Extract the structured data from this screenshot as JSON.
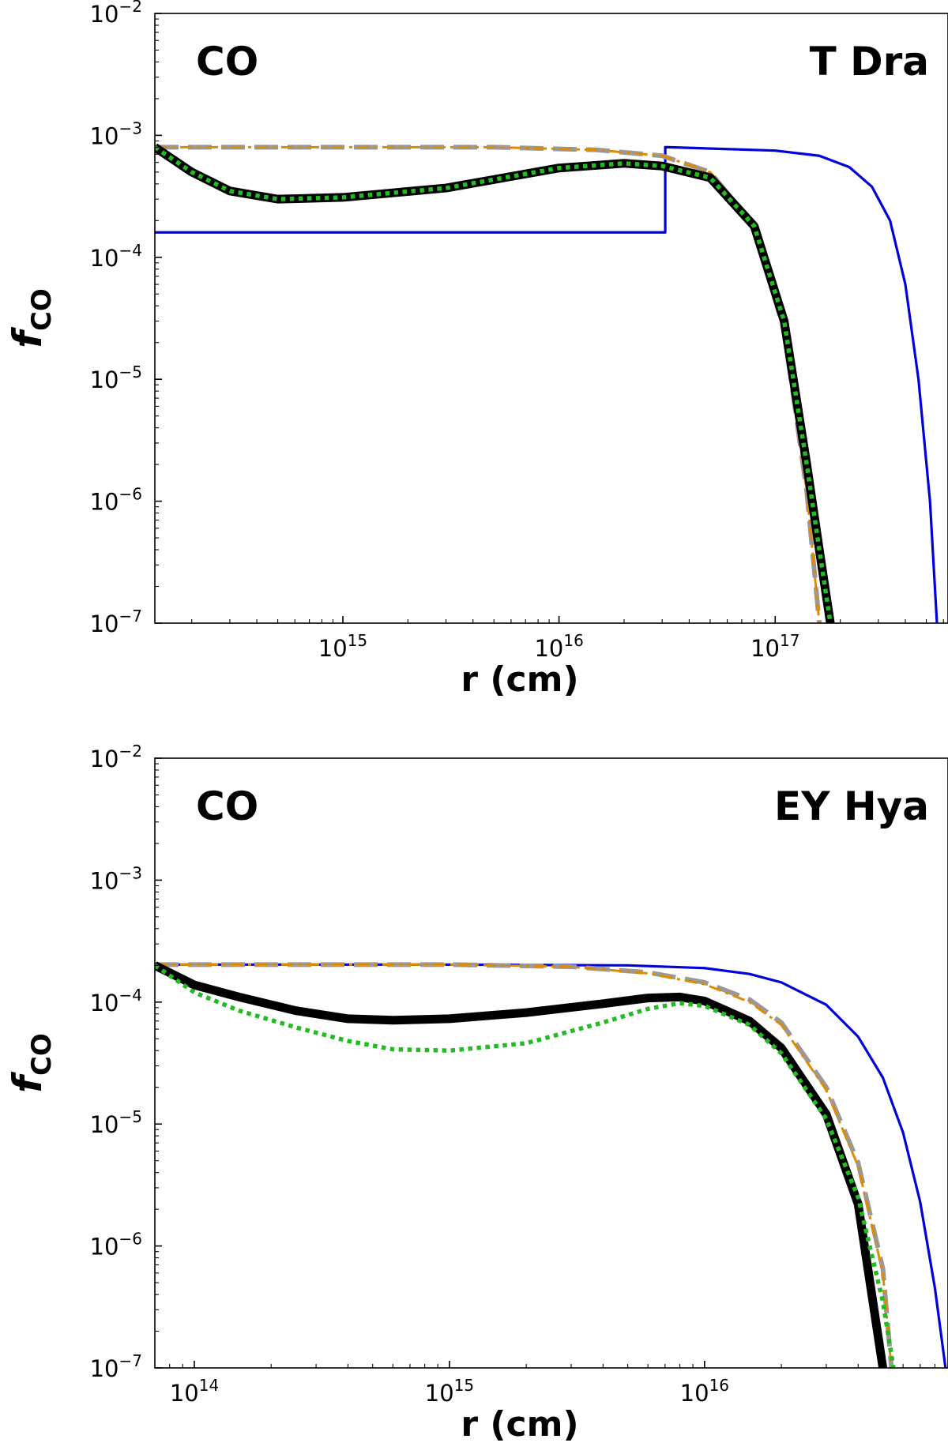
{
  "chart_data": [
    {
      "type": "line",
      "panel": "top",
      "xlabel": "r (cm)",
      "ylabel": "f",
      "ylabel_sub": "CO",
      "annotation_left": "CO",
      "annotation_right": "T Dra",
      "x_scale": "log",
      "y_scale": "log",
      "xlim": [
        135000000000000.0,
        6.3e+17
      ],
      "ylim": [
        1e-07,
        0.01
      ],
      "x_ticks": [
        {
          "base": "10",
          "exp": "15",
          "value": 1000000000000000.0
        },
        {
          "base": "10",
          "exp": "16",
          "value": 1e+16
        },
        {
          "base": "10",
          "exp": "17",
          "value": 1e+17
        }
      ],
      "y_ticks": [
        {
          "base": "10",
          "exp": "−2",
          "value": 0.01
        },
        {
          "base": "10",
          "exp": "−3",
          "value": 0.001
        },
        {
          "base": "10",
          "exp": "−4",
          "value": 0.0001
        },
        {
          "base": "10",
          "exp": "−5",
          "value": 1e-05
        },
        {
          "base": "10",
          "exp": "−6",
          "value": 1e-06
        },
        {
          "base": "10",
          "exp": "−7",
          "value": 1e-07
        }
      ],
      "grid": false,
      "series": [
        {
          "style": "blue-solid",
          "color": "#0000dd",
          "x": [
            135000000000000.0,
            3.1e+16,
            3.1e+16,
            3.2e+16,
            1e+17,
            1.6e+17,
            2.2e+17,
            2.8e+17,
            3.4e+17,
            4e+17,
            4.6e+17,
            5.2e+17,
            5.6e+17
          ],
          "y": [
            0.00016,
            0.00016,
            0.0008,
            0.0008,
            0.00075,
            0.00068,
            0.00055,
            0.00038,
            0.0002,
            6e-05,
            1e-05,
            1e-06,
            1e-07
          ]
        },
        {
          "style": "gray-dashed",
          "color": "#999999",
          "x": [
            135000000000000.0,
            1000000000000000.0,
            5000000000000000.0,
            1.5e+16,
            3e+16,
            5e+16,
            8e+16,
            1.1e+17,
            1.4e+17,
            1.6e+17
          ],
          "y": [
            0.0008,
            0.0008,
            0.0008,
            0.00076,
            0.00068,
            0.0005,
            0.00018,
            2.5e-05,
            1.2e-06,
            1e-07
          ]
        },
        {
          "style": "orange-dashdot",
          "color": "#e08a00",
          "x": [
            135000000000000.0,
            1000000000000000.0,
            5000000000000000.0,
            1.5e+16,
            3e+16,
            5e+16,
            8e+16,
            1.1e+17,
            1.4e+17,
            1.6e+17
          ],
          "y": [
            0.0008,
            0.0008,
            0.0008,
            0.00076,
            0.00068,
            0.0005,
            0.00018,
            2.5e-05,
            1.2e-06,
            1e-07
          ]
        },
        {
          "style": "black-thick",
          "color": "#000000",
          "x": [
            135000000000000.0,
            200000000000000.0,
            300000000000000.0,
            500000000000000.0,
            1000000000000000.0,
            3000000000000000.0,
            1e+16,
            2e+16,
            3e+16,
            5e+16,
            8e+16,
            1.1e+17,
            1.4e+17,
            1.6e+17,
            1.8e+17
          ],
          "y": [
            0.0008,
            0.0005,
            0.00035,
            0.0003,
            0.00031,
            0.00037,
            0.00054,
            0.00059,
            0.00056,
            0.00045,
            0.00018,
            3e-05,
            2e-06,
            4e-07,
            1e-07
          ]
        },
        {
          "style": "green-dotted",
          "color": "#22bb22",
          "x": [
            135000000000000.0,
            200000000000000.0,
            300000000000000.0,
            500000000000000.0,
            1000000000000000.0,
            3000000000000000.0,
            1e+16,
            2e+16,
            3e+16,
            5e+16,
            8e+16,
            1.1e+17,
            1.4e+17,
            1.6e+17,
            1.8e+17
          ],
          "y": [
            0.0008,
            0.0005,
            0.00035,
            0.0003,
            0.00031,
            0.00037,
            0.00054,
            0.00059,
            0.00056,
            0.00045,
            0.00018,
            3e-05,
            2e-06,
            4e-07,
            1e-07
          ]
        }
      ]
    },
    {
      "type": "line",
      "panel": "bottom",
      "xlabel": "r (cm)",
      "ylabel": "f",
      "ylabel_sub": "CO",
      "annotation_left": "CO",
      "annotation_right": "EY Hya",
      "x_scale": "log",
      "y_scale": "log",
      "xlim": [
        70000000000000.0,
        9e+16
      ],
      "ylim": [
        1e-07,
        0.01
      ],
      "x_ticks": [
        {
          "base": "10",
          "exp": "14",
          "value": 100000000000000.0
        },
        {
          "base": "10",
          "exp": "15",
          "value": 1000000000000000.0
        },
        {
          "base": "10",
          "exp": "16",
          "value": 1e+16
        }
      ],
      "y_ticks": [
        {
          "base": "10",
          "exp": "−2",
          "value": 0.01
        },
        {
          "base": "10",
          "exp": "−3",
          "value": 0.001
        },
        {
          "base": "10",
          "exp": "−4",
          "value": 0.0001
        },
        {
          "base": "10",
          "exp": "−5",
          "value": 1e-05
        },
        {
          "base": "10",
          "exp": "−6",
          "value": 1e-06
        },
        {
          "base": "10",
          "exp": "−7",
          "value": 1e-07
        }
      ],
      "grid": false,
      "series": [
        {
          "style": "blue-solid",
          "color": "#0000dd",
          "x": [
            70000000000000.0,
            1000000000000000.0,
            5000000000000000.0,
            1e+16,
            1.5e+16,
            2e+16,
            3e+16,
            4e+16,
            5e+16,
            6e+16,
            7e+16,
            8e+16,
            8.8e+16
          ],
          "y": [
            0.000203,
            0.000203,
            0.0002,
            0.00019,
            0.00017,
            0.000145,
            9.5e-05,
            5.2e-05,
            2.4e-05,
            8.5e-06,
            2.3e-06,
            4.5e-07,
            1e-07
          ]
        },
        {
          "style": "gray-dashed",
          "color": "#999999",
          "x": [
            70000000000000.0,
            1000000000000000.0,
            3000000000000000.0,
            6000000000000000.0,
            1e+16,
            1.5e+16,
            2e+16,
            3e+16,
            4e+16,
            5e+16,
            5.4e+16
          ],
          "y": [
            0.000203,
            0.000203,
            0.000195,
            0.000175,
            0.000145,
            0.000105,
            6.8e-05,
            2e-05,
            4.8e-06,
            6.5e-07,
            1e-07
          ]
        },
        {
          "style": "orange-dashdot",
          "color": "#e08a00",
          "x": [
            70000000000000.0,
            1000000000000000.0,
            3000000000000000.0,
            6000000000000000.0,
            1e+16,
            1.5e+16,
            2e+16,
            3e+16,
            4e+16,
            5e+16,
            5.4e+16
          ],
          "y": [
            0.000203,
            0.000203,
            0.000195,
            0.000172,
            0.00014,
            0.0001,
            6.5e-05,
            1.9e-05,
            4.5e-06,
            6e-07,
            1e-07
          ]
        },
        {
          "style": "black-thick",
          "color": "#000000",
          "x": [
            70000000000000.0,
            100000000000000.0,
            150000000000000.0,
            250000000000000.0,
            400000000000000.0,
            600000000000000.0,
            1000000000000000.0,
            2000000000000000.0,
            4000000000000000.0,
            6000000000000000.0,
            8000000000000000.0,
            1e+16,
            1.5e+16,
            2e+16,
            3e+16,
            4e+16,
            5e+16
          ],
          "y": [
            0.0002,
            0.000138,
            0.00011,
            8.5e-05,
            7.3e-05,
            7.1e-05,
            7.3e-05,
            8.2e-05,
            9.7e-05,
            0.000108,
            0.00011,
            0.000102,
            7e-05,
            4.2e-05,
            1.2e-05,
            2.2e-06,
            1e-07
          ]
        },
        {
          "style": "green-dotted",
          "color": "#22bb22",
          "x": [
            70000000000000.0,
            100000000000000.0,
            150000000000000.0,
            250000000000000.0,
            400000000000000.0,
            600000000000000.0,
            1000000000000000.0,
            2000000000000000.0,
            4000000000000000.0,
            6000000000000000.0,
            8000000000000000.0,
            1e+16,
            1.5e+16,
            2e+16,
            3e+16,
            4e+16,
            5e+16,
            5.5e+16
          ],
          "y": [
            0.0002,
            0.00012,
            8.5e-05,
            6.2e-05,
            4.8e-05,
            4.1e-05,
            4e-05,
            4.6e-05,
            6.8e-05,
            8.8e-05,
            9.8e-05,
            9.3e-05,
            6.5e-05,
            3.8e-05,
            1.1e-05,
            2.5e-06,
            3.5e-07,
            1e-07
          ]
        }
      ]
    }
  ]
}
